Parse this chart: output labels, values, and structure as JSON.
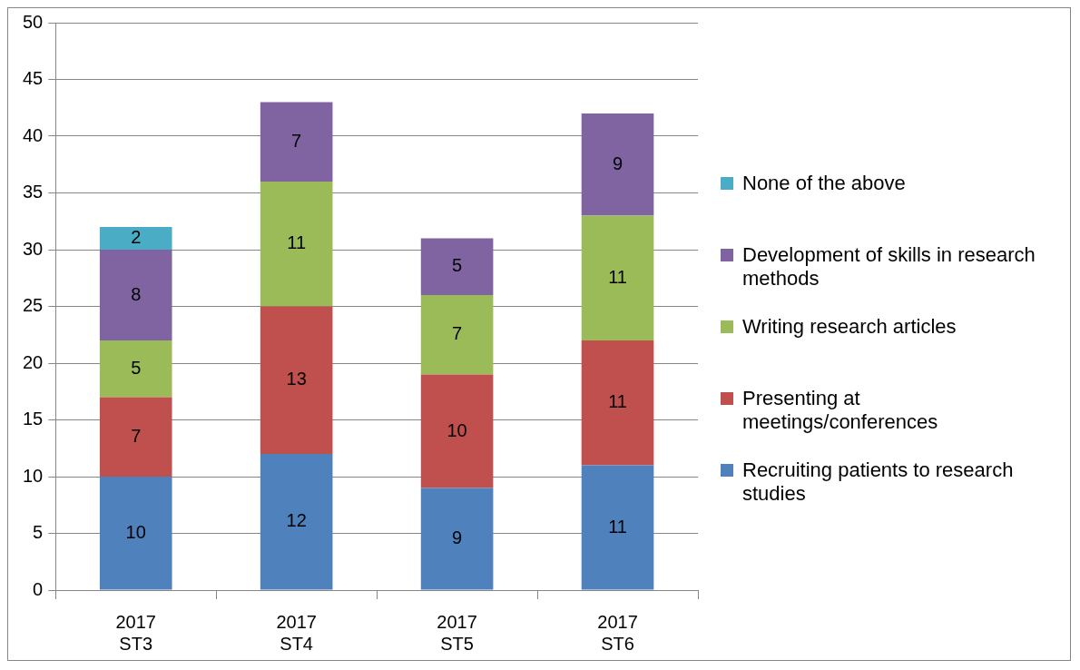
{
  "chart_data": {
    "type": "bar",
    "stacked": true,
    "categories": [
      "2017\nST3",
      "2017\nST4",
      "2017\nST5",
      "2017\nST6"
    ],
    "series": [
      {
        "name": "Recruiting patients to research studies",
        "color": "#4f81bd",
        "values": [
          10,
          12,
          9,
          11
        ]
      },
      {
        "name": "Presenting at meetings/conferences",
        "color": "#c0504d",
        "values": [
          7,
          13,
          10,
          11
        ]
      },
      {
        "name": "Writing research articles",
        "color": "#9bbb59",
        "values": [
          5,
          11,
          7,
          11
        ]
      },
      {
        "name": "Development of skills in research methods",
        "color": "#8064a2",
        "values": [
          8,
          7,
          5,
          9
        ]
      },
      {
        "name": "None of the above",
        "color": "#4bacc6",
        "values": [
          2,
          null,
          null,
          null
        ]
      }
    ],
    "ylim": [
      0,
      50
    ],
    "yticks": [
      0,
      5,
      10,
      15,
      20,
      25,
      30,
      35,
      40,
      45,
      50
    ],
    "grid": "y",
    "legend": "right",
    "data_labels": true
  }
}
